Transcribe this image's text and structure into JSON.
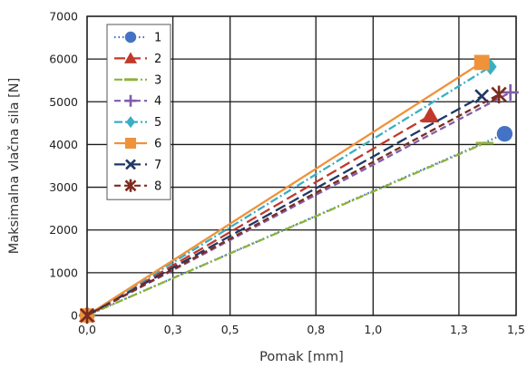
{
  "chart_data": {
    "type": "line",
    "xlabel": "Pomak [mm]",
    "ylabel": "Maksimalna vlačna sila [N]",
    "xlim": [
      0,
      1.5
    ],
    "ylim": [
      0,
      7000
    ],
    "grid": true,
    "legend_position": "top-left",
    "x_tick_values": [
      0,
      0.3,
      0.5,
      0.8,
      1.0,
      1.3,
      1.5
    ],
    "x_tick_labels": [
      "0,0",
      "0,3",
      "0,5",
      "0,8",
      "1,0",
      "1,3",
      "1,5"
    ],
    "y_tick_values": [
      0,
      1000,
      2000,
      3000,
      4000,
      5000,
      6000,
      7000
    ],
    "y_tick_labels": [
      "0",
      "1000",
      "2000",
      "3000",
      "4000",
      "5000",
      "6000",
      "7000"
    ],
    "series": [
      {
        "name": "1",
        "color": "#4472c4",
        "dash": "dotted",
        "marker": "circle",
        "x": [
          0,
          1.46
        ],
        "y": [
          0,
          4250
        ]
      },
      {
        "name": "2",
        "color": "#c0392b",
        "dash": "longdash",
        "marker": "triangle",
        "x": [
          0,
          1.2
        ],
        "y": [
          0,
          4680
        ]
      },
      {
        "name": "3",
        "color": "#8db33a",
        "dash": "dashdot",
        "marker": "dash",
        "x": [
          0,
          1.39
        ],
        "y": [
          0,
          4030
        ]
      },
      {
        "name": "4",
        "color": "#7f5ea8",
        "dash": "dash",
        "marker": "plus",
        "x": [
          0,
          1.48
        ],
        "y": [
          0,
          5220
        ]
      },
      {
        "name": "5",
        "color": "#3aaec4",
        "dash": "dashdot",
        "marker": "diamond",
        "x": [
          0,
          1.41
        ],
        "y": [
          0,
          5820
        ]
      },
      {
        "name": "6",
        "color": "#f0923a",
        "dash": "solid",
        "marker": "square",
        "x": [
          0,
          1.38
        ],
        "y": [
          0,
          5920
        ]
      },
      {
        "name": "7",
        "color": "#1f3864",
        "dash": "longdash",
        "marker": "x",
        "x": [
          0,
          1.38
        ],
        "y": [
          0,
          5130
        ]
      },
      {
        "name": "8",
        "color": "#7b2c1e",
        "dash": "dash",
        "marker": "star",
        "x": [
          0,
          1.44
        ],
        "y": [
          0,
          5170
        ]
      }
    ]
  }
}
